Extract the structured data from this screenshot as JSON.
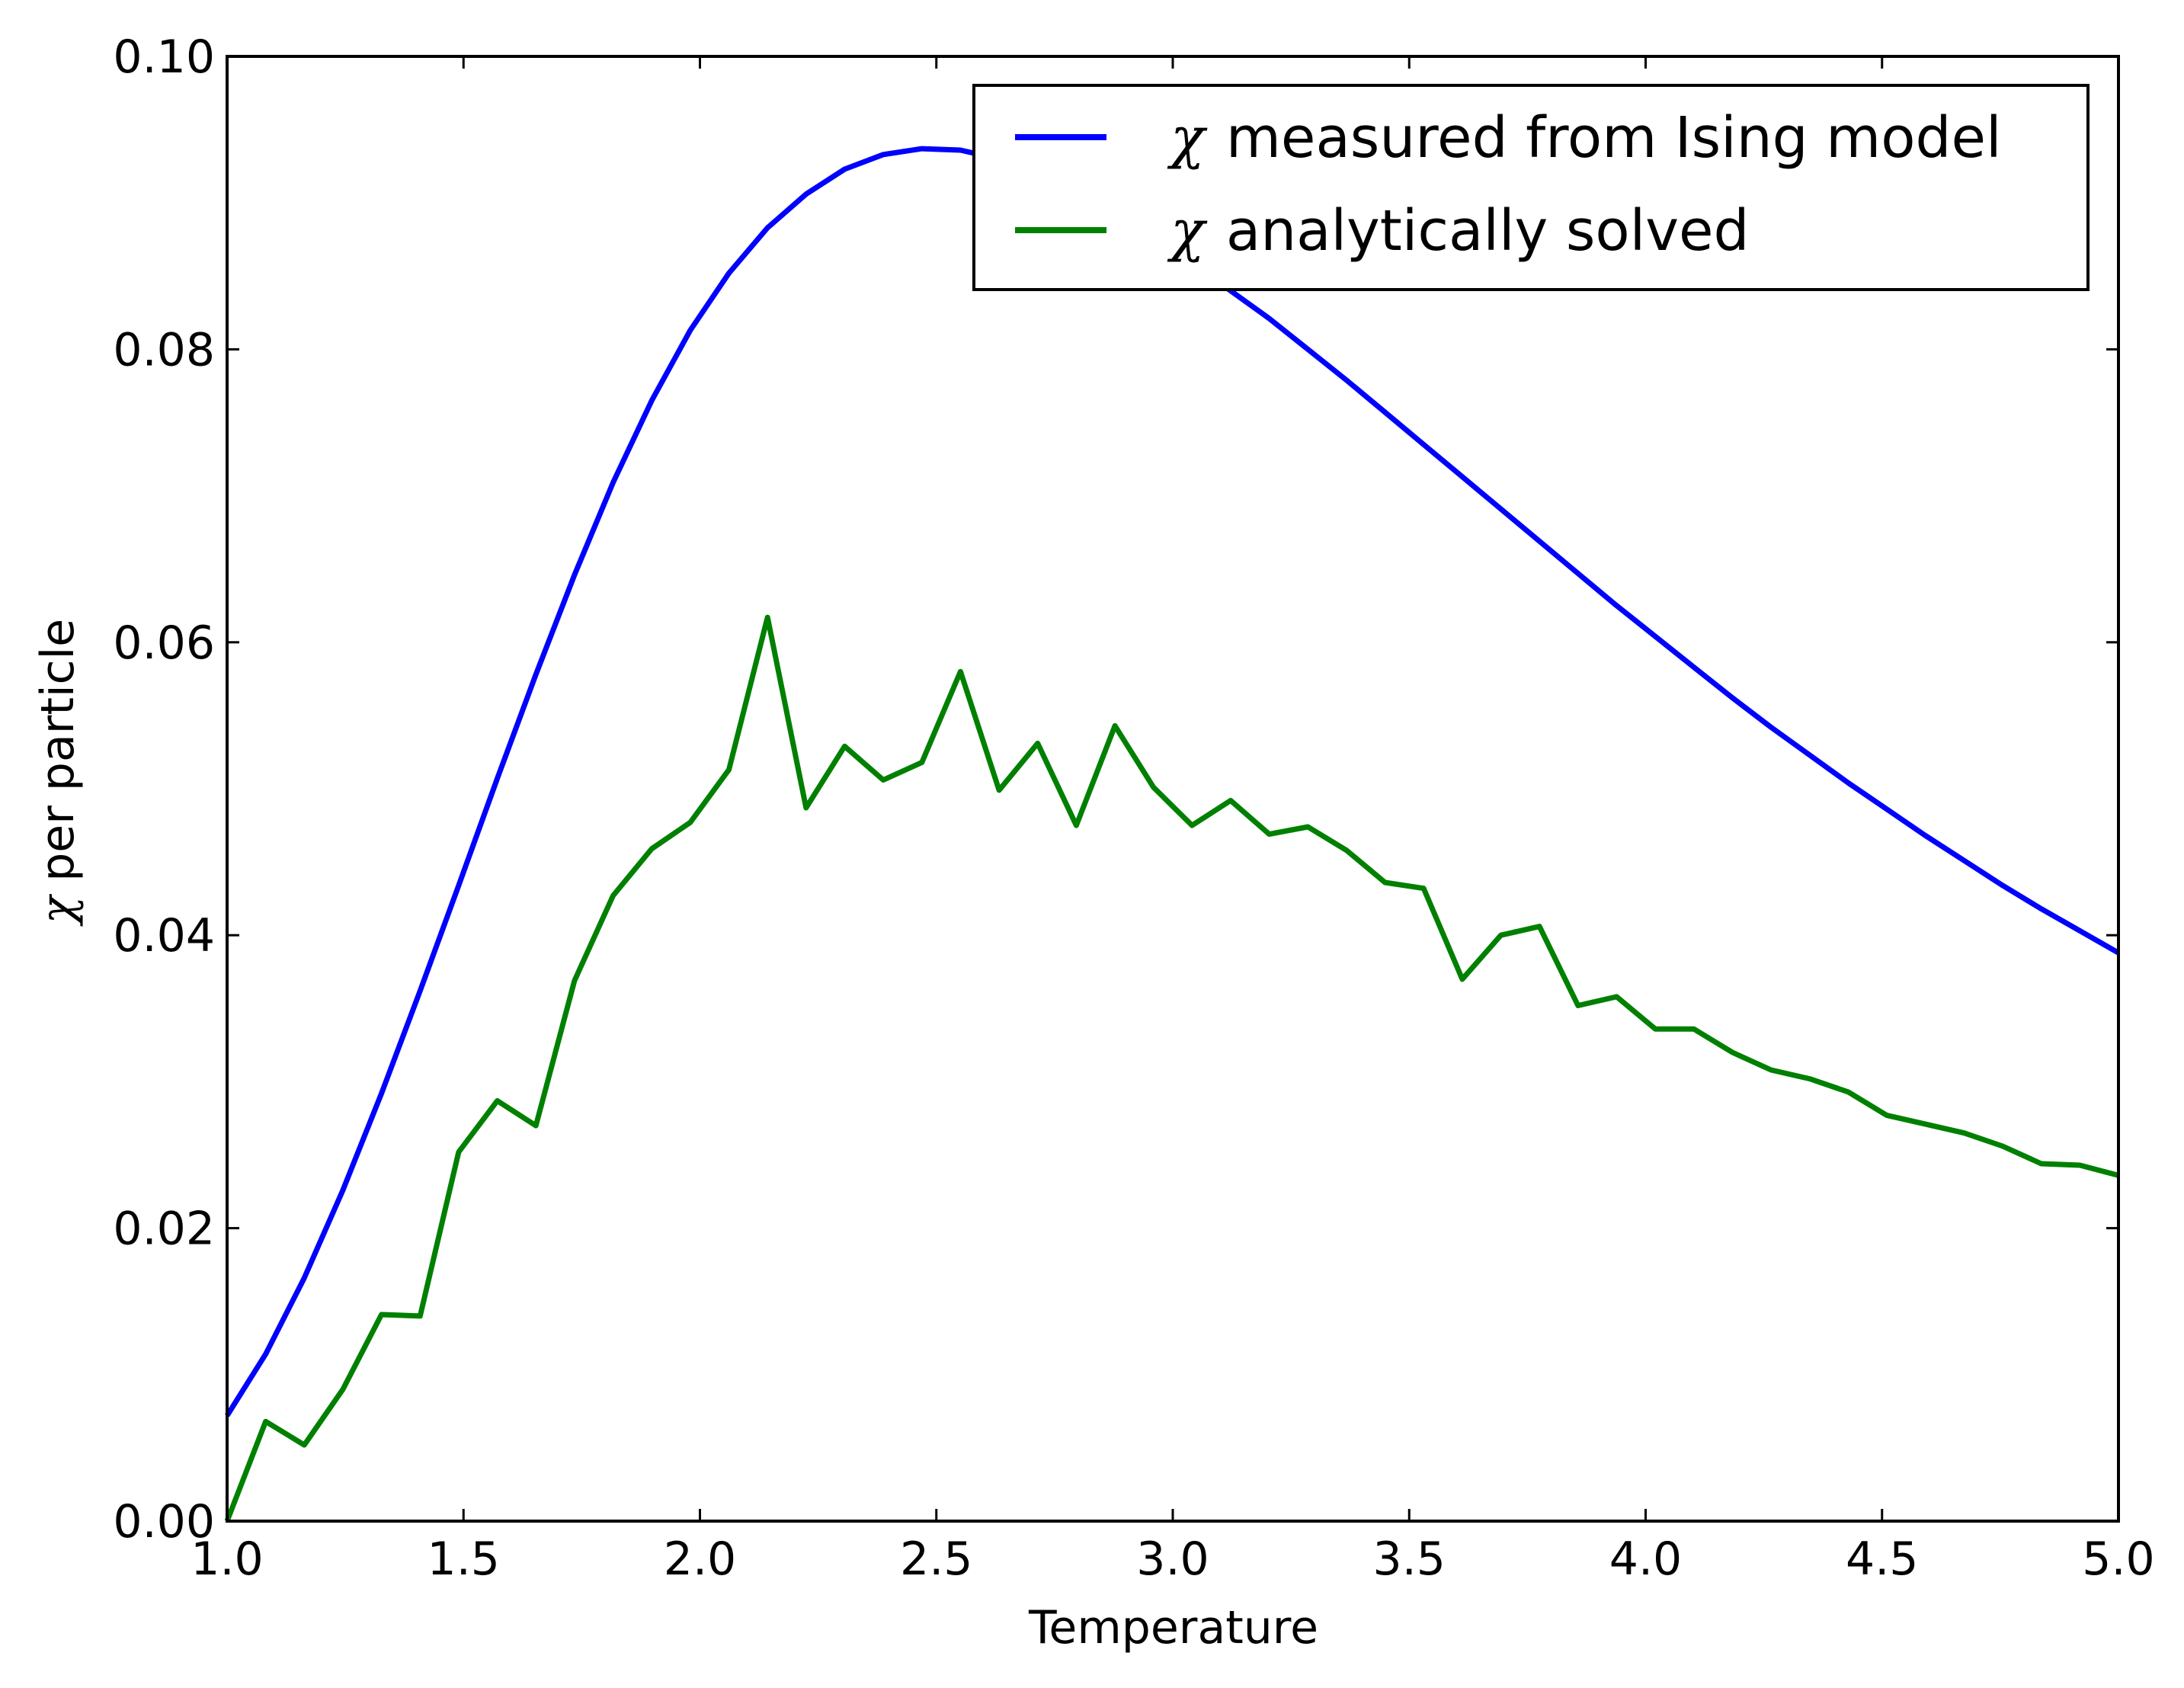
{
  "chart_data": {
    "type": "line",
    "title": "",
    "xlabel": "Temperature",
    "ylabel": {
      "symbol": "χ",
      "text": " per particle"
    },
    "xlim": [
      1.0,
      5.0
    ],
    "ylim": [
      0.0,
      0.1
    ],
    "xticks": [
      "1.0",
      "1.5",
      "2.0",
      "2.5",
      "3.0",
      "3.5",
      "4.0",
      "4.5",
      "5.0"
    ],
    "yticks": [
      "0.00",
      "0.02",
      "0.04",
      "0.06",
      "0.08",
      "0.10"
    ],
    "grid": false,
    "legend_position": "top-right",
    "x": [
      1.0,
      1.0816,
      1.1633,
      1.2449,
      1.3265,
      1.4082,
      1.4898,
      1.5714,
      1.6531,
      1.7347,
      1.8163,
      1.898,
      1.9796,
      2.0612,
      2.1429,
      2.2245,
      2.3061,
      2.3878,
      2.4694,
      2.551,
      2.6327,
      2.7143,
      2.7959,
      2.8776,
      2.9592,
      3.0408,
      3.1224,
      3.2041,
      3.2857,
      3.3673,
      3.449,
      3.5306,
      3.6122,
      3.6939,
      3.7755,
      3.8571,
      3.9388,
      4.0204,
      4.102,
      4.1837,
      4.2653,
      4.3469,
      4.4286,
      4.5102,
      4.5918,
      4.6735,
      4.7551,
      4.8367,
      4.9184,
      5.0
    ],
    "series": [
      {
        "name": "measured from Ising model",
        "legend_symbol": "χ",
        "color": "#0000ff",
        "values": [
          0.0072,
          0.0114,
          0.0166,
          0.0226,
          0.0292,
          0.0362,
          0.0434,
          0.0507,
          0.0578,
          0.0646,
          0.0709,
          0.0765,
          0.0813,
          0.0852,
          0.0883,
          0.0906,
          0.0923,
          0.0933,
          0.0937,
          0.0936,
          0.093,
          0.0921,
          0.0908,
          0.0893,
          0.0877,
          0.0859,
          0.084,
          0.0821,
          0.08,
          0.0779,
          0.0757,
          0.0735,
          0.0713,
          0.0691,
          0.0669,
          0.0647,
          0.0625,
          0.0604,
          0.0583,
          0.0562,
          0.0542,
          0.0523,
          0.0504,
          0.0486,
          0.0468,
          0.0451,
          0.0434,
          0.0418,
          0.0403,
          0.0388
        ]
      },
      {
        "name": "analytically solved",
        "legend_symbol": "χ",
        "color": "#008000",
        "values": [
          0.0,
          0.0068,
          0.0052,
          0.009,
          0.0141,
          0.014,
          0.0252,
          0.0287,
          0.027,
          0.0369,
          0.0427,
          0.0459,
          0.0477,
          0.0513,
          0.0617,
          0.0487,
          0.0529,
          0.0506,
          0.0518,
          0.058,
          0.0499,
          0.0531,
          0.0475,
          0.0543,
          0.0501,
          0.0475,
          0.0492,
          0.0469,
          0.0474,
          0.0458,
          0.0436,
          0.0432,
          0.037,
          0.04,
          0.0406,
          0.0352,
          0.0358,
          0.0336,
          0.0336,
          0.032,
          0.0308,
          0.0302,
          0.0293,
          0.0277,
          0.0271,
          0.0265,
          0.0256,
          0.0244,
          0.0243,
          0.0236
        ]
      }
    ]
  }
}
